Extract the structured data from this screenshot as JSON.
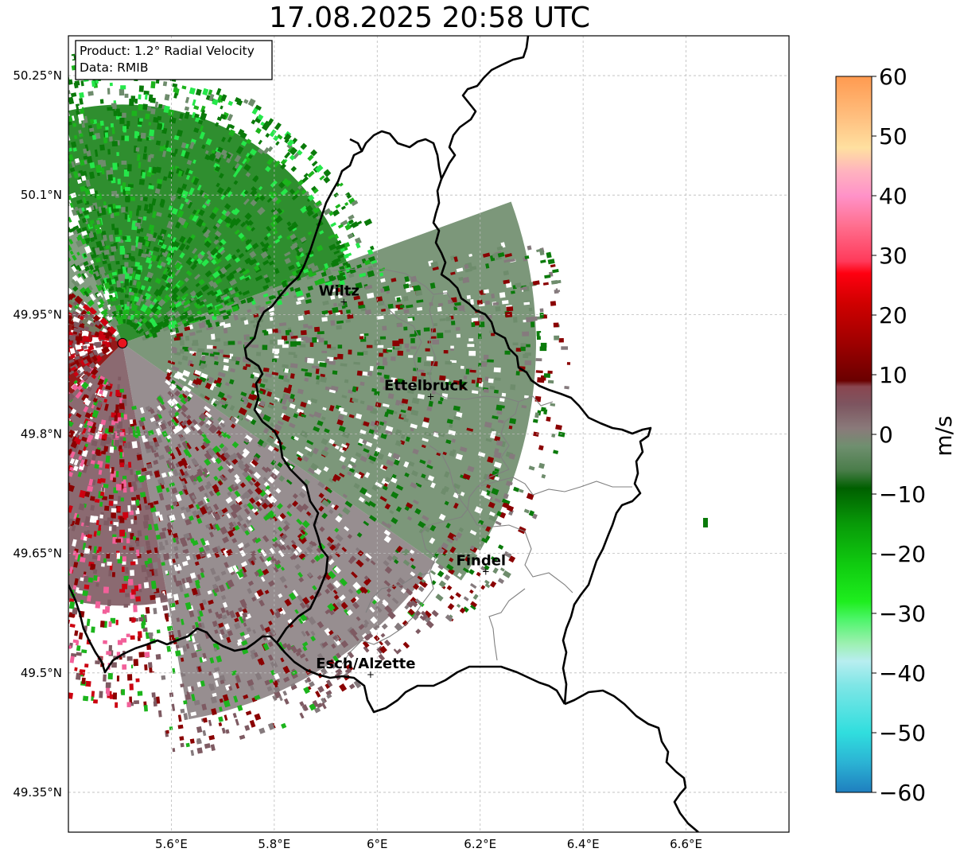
{
  "title": "17.08.2025 20:58 UTC",
  "info_box": {
    "product": "Product: 1.2° Radial Velocity",
    "data": "Data: RMIB"
  },
  "axes": {
    "x_ticks": [
      "5.6°E",
      "5.8°E",
      "6°E",
      "6.2°E",
      "6.4°E",
      "6.6°E"
    ],
    "x_values": [
      5.6,
      5.8,
      6.0,
      6.2,
      6.4,
      6.6
    ],
    "y_ticks": [
      "50.25°N",
      "50.1°N",
      "49.95°N",
      "49.8°N",
      "49.65°N",
      "49.5°N",
      "49.35°N"
    ],
    "y_values": [
      50.25,
      50.1,
      49.95,
      49.8,
      49.65,
      49.5,
      49.35
    ],
    "lon_range": [
      5.4,
      6.8
    ],
    "lat_range": [
      49.3,
      50.3
    ],
    "grid": true
  },
  "radar_site": {
    "lon": 5.505,
    "lat": 49.914,
    "color": "#e8141e"
  },
  "cities": [
    {
      "name": "Wiltz",
      "lon": 5.935,
      "lat": 49.966
    },
    {
      "name": "Ettelbruck",
      "lon": 6.104,
      "lat": 49.847
    },
    {
      "name": "Findel",
      "lon": 6.211,
      "lat": 49.627
    },
    {
      "name": "Esch/Alzette",
      "lon": 5.987,
      "lat": 49.498
    }
  ],
  "colorbar": {
    "label": "m/s",
    "range": [
      -60,
      60
    ],
    "ticks": [
      "60",
      "50",
      "40",
      "30",
      "20",
      "10",
      "0",
      "−10",
      "−20",
      "−30",
      "−40",
      "−50",
      "−60"
    ],
    "tick_values": [
      60,
      50,
      40,
      30,
      20,
      10,
      0,
      -10,
      -20,
      -30,
      -40,
      -50,
      -60
    ],
    "stops": [
      {
        "v": -60,
        "c": "#1f7fbf"
      },
      {
        "v": -55,
        "c": "#2bb3d4"
      },
      {
        "v": -50,
        "c": "#30dede"
      },
      {
        "v": -42,
        "c": "#7fe6e6"
      },
      {
        "v": -38,
        "c": "#b8eef0"
      },
      {
        "v": -35,
        "c": "#9cf0b0"
      },
      {
        "v": -31,
        "c": "#4df56a"
      },
      {
        "v": -28,
        "c": "#1eee1e"
      },
      {
        "v": -22,
        "c": "#10cc10"
      },
      {
        "v": -15,
        "c": "#089a08"
      },
      {
        "v": -9,
        "c": "#005f00"
      },
      {
        "v": -6,
        "c": "#4a7d4a"
      },
      {
        "v": -2,
        "c": "#6f8f6f"
      },
      {
        "v": 1,
        "c": "#8a7a7a"
      },
      {
        "v": 5,
        "c": "#7d5560"
      },
      {
        "v": 8,
        "c": "#8a4650"
      },
      {
        "v": 9,
        "c": "#6a0000"
      },
      {
        "v": 15,
        "c": "#9c0000"
      },
      {
        "v": 22,
        "c": "#d00000"
      },
      {
        "v": 27,
        "c": "#ff0010"
      },
      {
        "v": 29,
        "c": "#ff3a5a"
      },
      {
        "v": 35,
        "c": "#ff6f8f"
      },
      {
        "v": 40,
        "c": "#ff92c8"
      },
      {
        "v": 44,
        "c": "#ffb2bf"
      },
      {
        "v": 48,
        "c": "#ffe0a0"
      },
      {
        "v": 53,
        "c": "#ffc080"
      },
      {
        "v": 60,
        "c": "#ff9a50"
      }
    ]
  },
  "palette": {
    "neg_dark": "#0a7a0a",
    "neg_mid": "#1cb41c",
    "neg_light": "#25e84a",
    "zero_green": "#6e8c6c",
    "zero_gray": "#857a7d",
    "pos_mauve": "#7e5a62",
    "pos_dark": "#8a0000",
    "pos_red": "#cc0010",
    "pos_pink": "#f2609a",
    "border": "#000000",
    "canton": "#808080",
    "gridline": "#bbbbbb"
  }
}
